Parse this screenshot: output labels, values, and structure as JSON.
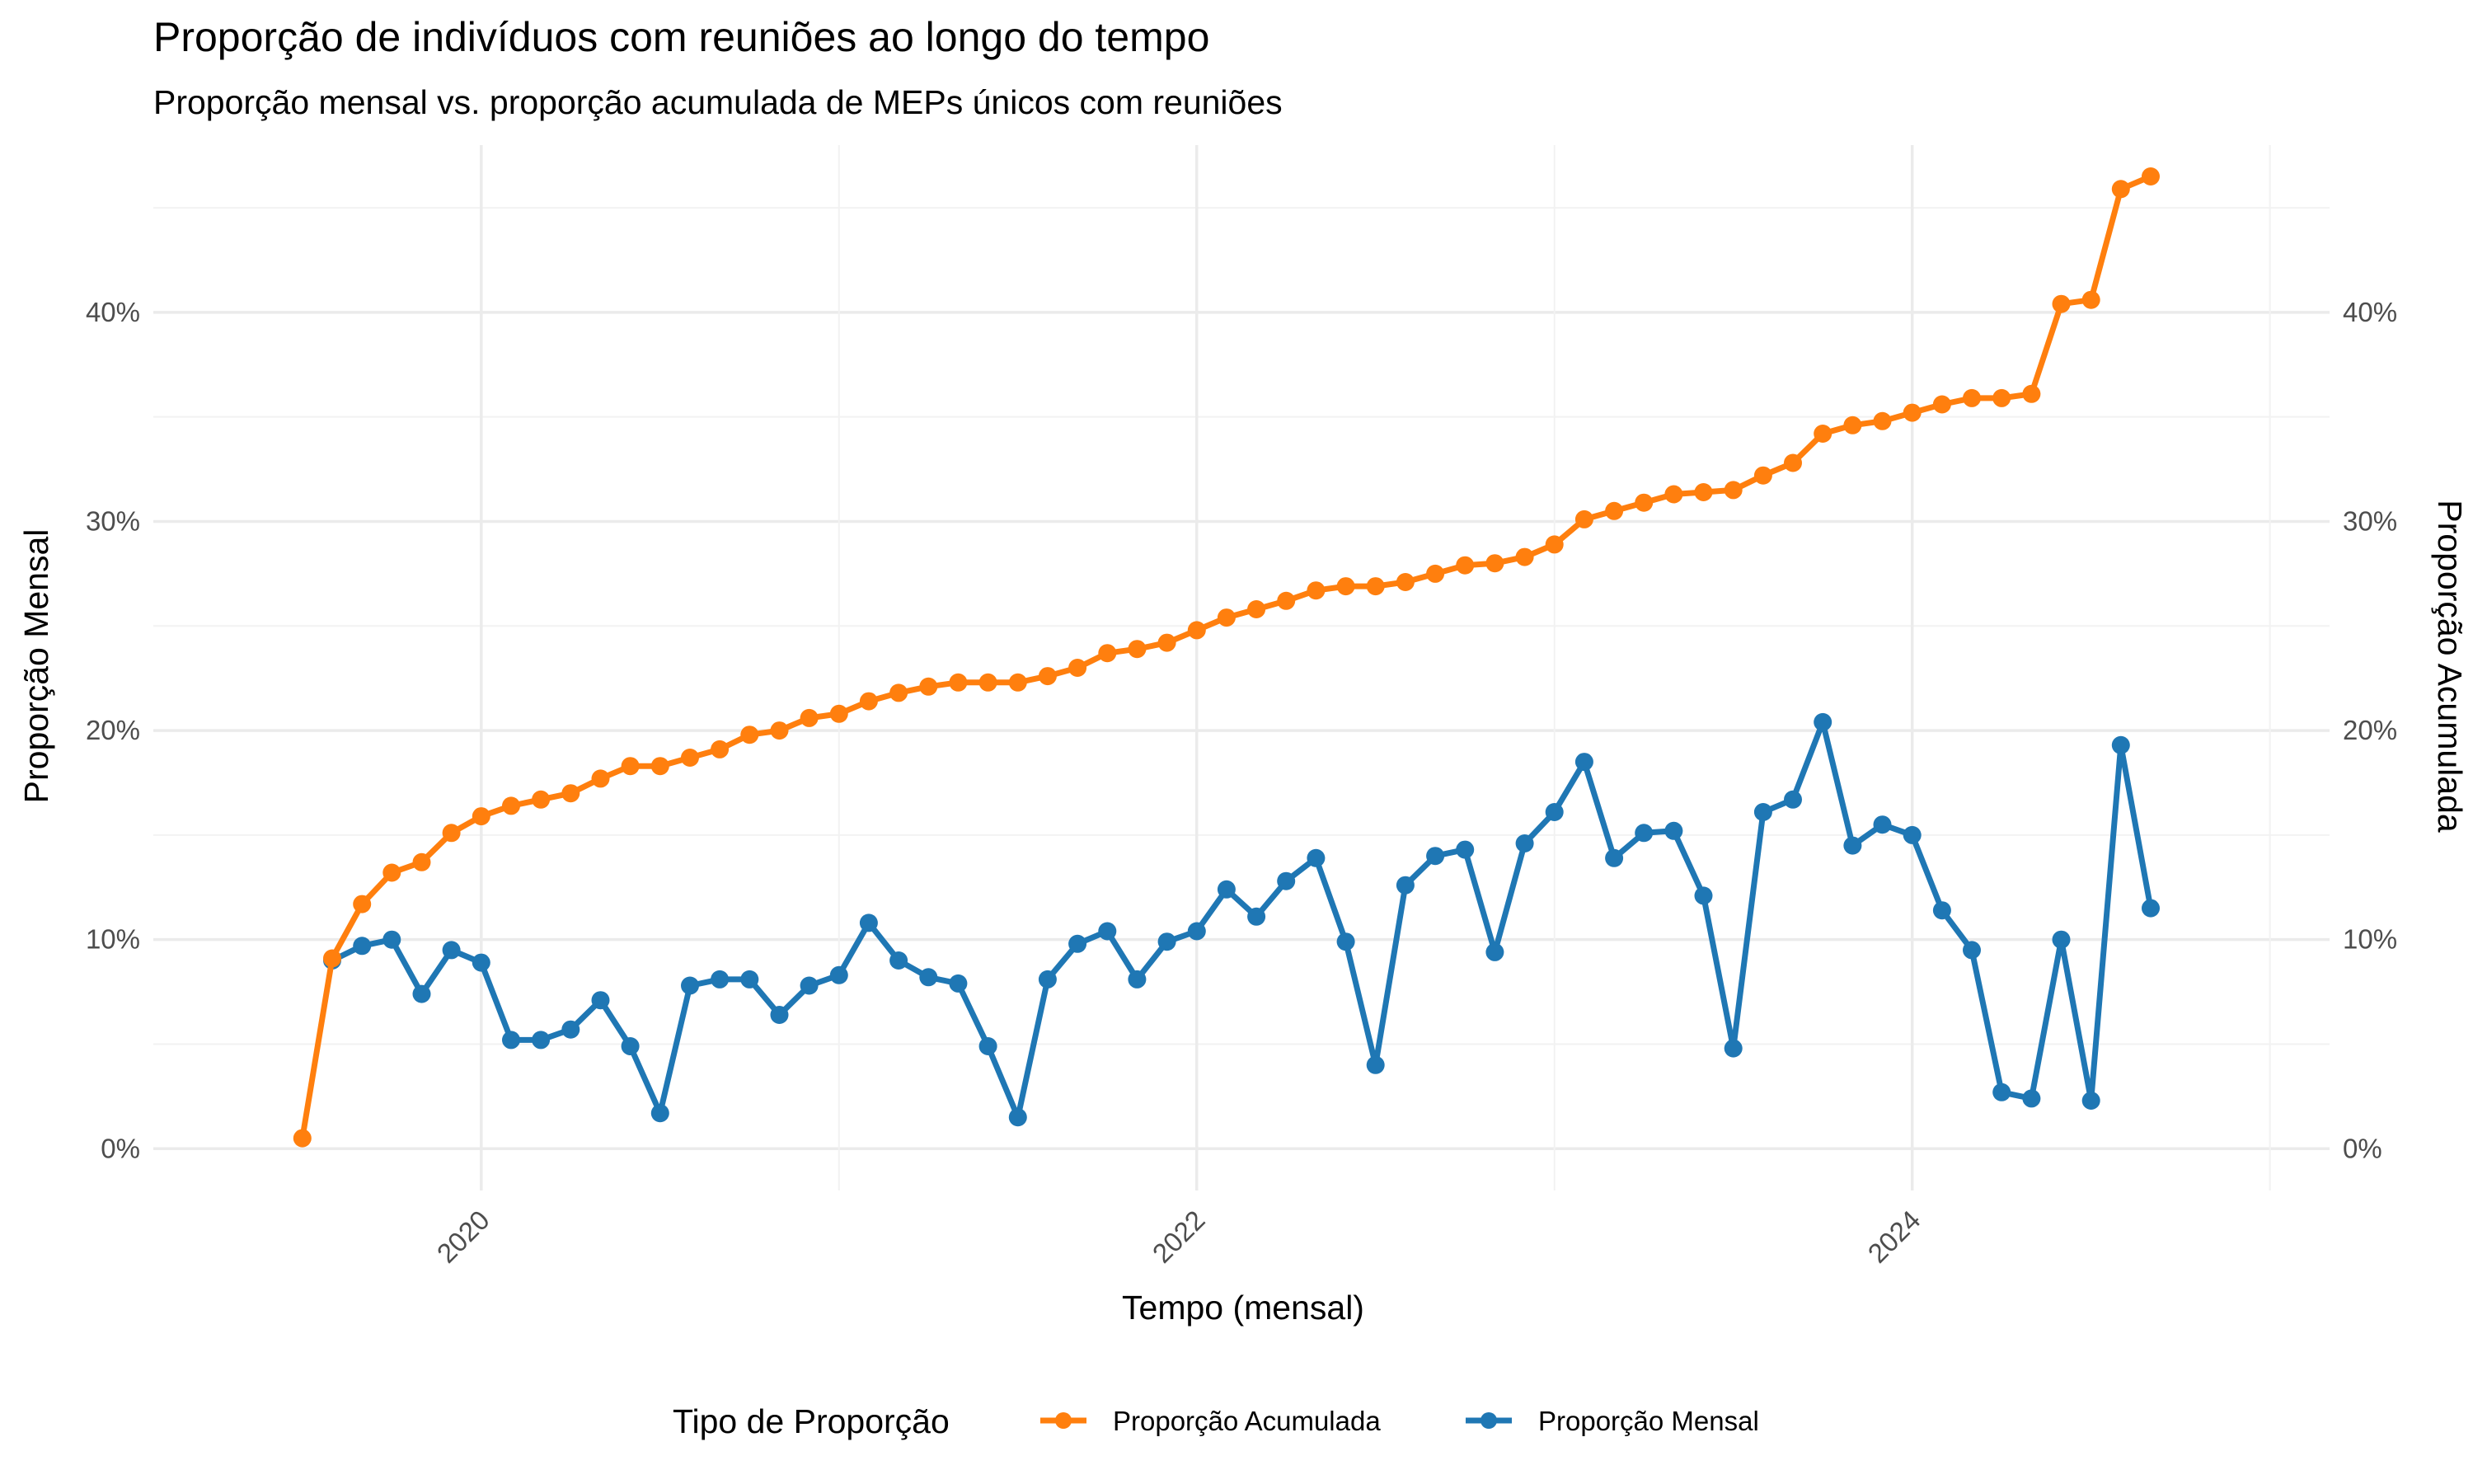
{
  "chart_data": {
    "type": "line",
    "title": "Proporção de indivíduos com reuniões ao longo do tempo",
    "subtitle": "Proporção mensal vs. proporção acumulada de MEPs únicos com reuniões",
    "xlabel": "Tempo (mensal)",
    "ylabel_left": "Proporção Mensal",
    "ylabel_right": "Proporção Acumulada",
    "x_start": "2019-07",
    "x_ticks": [
      "2020",
      "2022",
      "2024"
    ],
    "y_ticks": [
      "0%",
      "10%",
      "20%",
      "30%",
      "40%"
    ],
    "ylim": [
      -0.02,
      0.48
    ],
    "grid": true,
    "legend_position": "bottom",
    "legend_title": "Tipo de Proporção",
    "series": [
      {
        "name": "Proporção Acumulada",
        "color": "#ff7f0e",
        "start": "2019-07",
        "values": [
          0.005,
          0.091,
          0.117,
          0.132,
          0.137,
          0.151,
          0.159,
          0.164,
          0.167,
          0.17,
          0.177,
          0.183,
          0.183,
          0.187,
          0.191,
          0.198,
          0.2,
          0.206,
          0.208,
          0.214,
          0.218,
          0.221,
          0.223,
          0.223,
          0.223,
          0.226,
          0.23,
          0.237,
          0.239,
          0.242,
          0.248,
          0.254,
          0.258,
          0.262,
          0.267,
          0.269,
          0.269,
          0.271,
          0.275,
          0.279,
          0.28,
          0.283,
          0.289,
          0.301,
          0.305,
          0.309,
          0.313,
          0.314,
          0.315,
          0.322,
          0.328,
          0.342,
          0.346,
          0.348,
          0.352,
          0.356,
          0.359,
          0.359,
          0.361,
          0.404,
          0.406,
          0.459,
          0.465
        ]
      },
      {
        "name": "Proporção Mensal",
        "color": "#1f77b4",
        "start": "2019-08",
        "values": [
          0.09,
          0.097,
          0.1,
          0.074,
          0.095,
          0.089,
          0.052,
          0.052,
          0.057,
          0.071,
          0.049,
          0.017,
          0.078,
          0.081,
          0.081,
          0.064,
          0.078,
          0.083,
          0.108,
          0.09,
          0.082,
          0.079,
          0.049,
          0.015,
          0.081,
          0.098,
          0.104,
          0.081,
          0.099,
          0.104,
          0.124,
          0.111,
          0.128,
          0.139,
          0.099,
          0.04,
          0.126,
          0.14,
          0.143,
          0.094,
          0.146,
          0.161,
          0.185,
          0.139,
          0.151,
          0.152,
          0.121,
          0.048,
          0.161,
          0.167,
          0.204,
          0.145,
          0.155,
          0.15,
          0.114,
          0.095,
          0.027,
          0.024,
          0.1,
          0.023,
          0.193,
          0.115
        ]
      }
    ]
  }
}
